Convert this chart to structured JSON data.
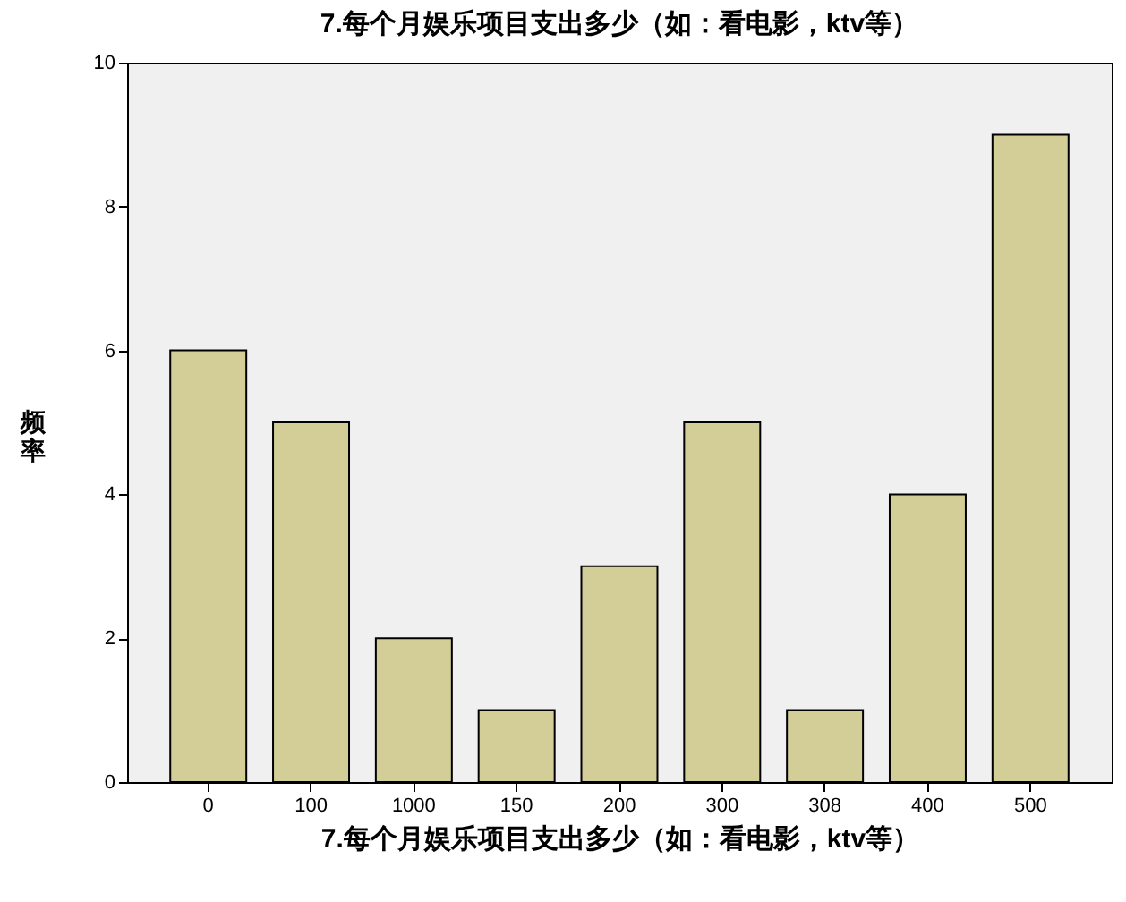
{
  "chart_data": {
    "type": "bar",
    "title": "7.每个月娱乐项目支出多少（如：看电影，ktv等）",
    "xlabel": "7.每个月娱乐项目支出多少（如：看电影，ktv等）",
    "ylabel": "频率",
    "categories": [
      "0",
      "100",
      "1000",
      "150",
      "200",
      "300",
      "308",
      "400",
      "500"
    ],
    "values": [
      6,
      5,
      2,
      1,
      3,
      5,
      1,
      4,
      9
    ],
    "color": "#d3ce97",
    "ylim": [
      0,
      10
    ],
    "yticks": [
      0,
      2,
      4,
      6,
      8,
      10
    ],
    "grid": false
  }
}
